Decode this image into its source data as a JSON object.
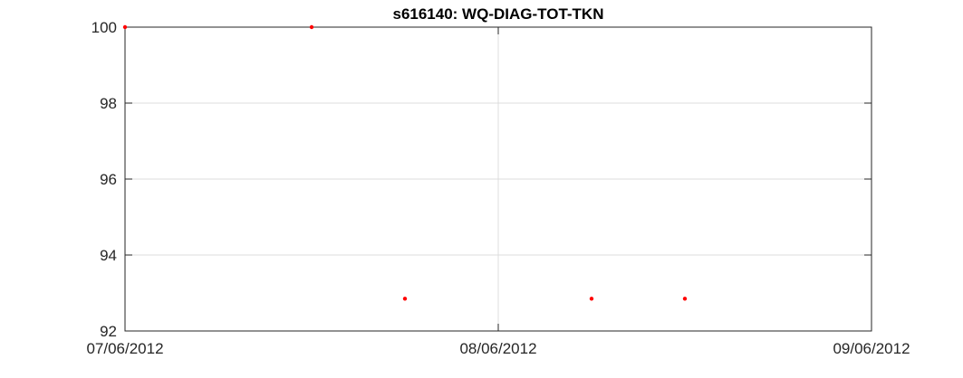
{
  "chart_data": {
    "type": "scatter",
    "title": "s616140: WQ-DIAG-TOT-TKN",
    "xlabel": "",
    "ylabel": "",
    "x_ticks": [
      "07/06/2012",
      "08/06/2012",
      "09/06/2012"
    ],
    "y_ticks": [
      "92",
      "94",
      "96",
      "98",
      "100"
    ],
    "xlim": [
      "2012-06-07",
      "2012-06-09"
    ],
    "ylim": [
      92,
      100
    ],
    "grid": true,
    "series": [
      {
        "color": "#ff0000",
        "points": [
          {
            "x": "2012-06-07T00:00",
            "y": 100.0
          },
          {
            "x": "2012-06-07T12:00",
            "y": 100.0
          },
          {
            "x": "2012-06-07T18:00",
            "y": 92.85
          },
          {
            "x": "2012-06-08T06:00",
            "y": 92.85
          },
          {
            "x": "2012-06-08T12:00",
            "y": 92.85
          }
        ]
      }
    ]
  }
}
